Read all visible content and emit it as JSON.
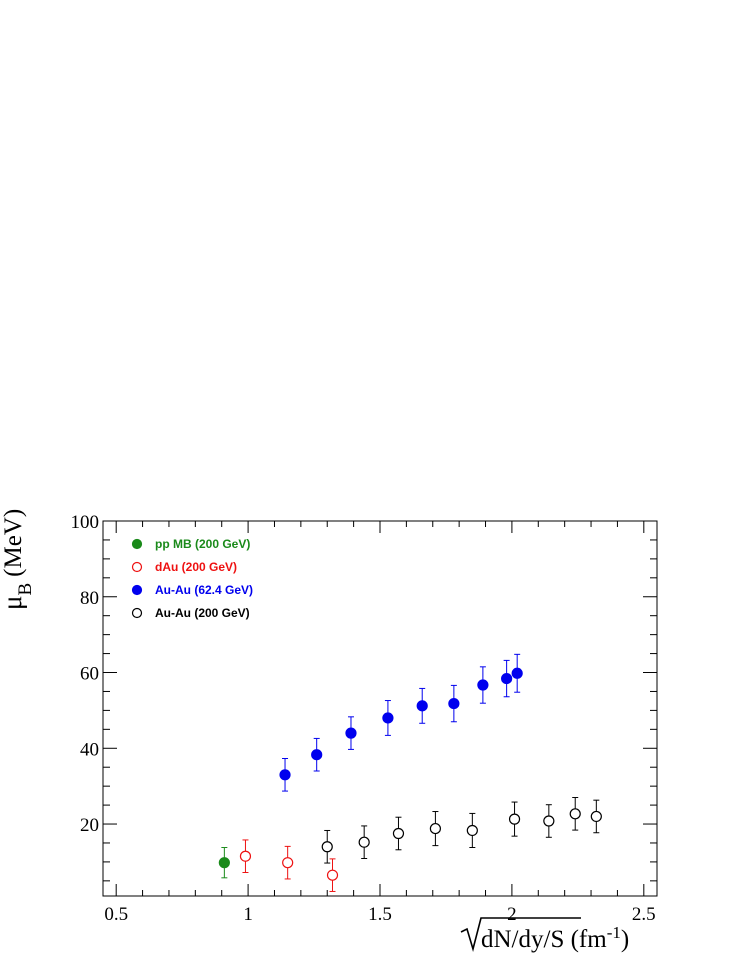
{
  "chart_data": {
    "type": "scatter",
    "xlabel": "dN/dy/S (fm",
    "xlabel_sup": "-1",
    "xlabel_close": ")",
    "ylabel": "μ",
    "ylabel_sub": "B",
    "ylabel_units": "(MeV)",
    "xlim": [
      0.45,
      2.55
    ],
    "ylim": [
      1,
      100
    ],
    "x_ticks": [
      {
        "value": 0.5,
        "label": "0.5"
      },
      {
        "value": 1.0,
        "label": "1"
      },
      {
        "value": 1.5,
        "label": "1.5"
      },
      {
        "value": 2.0,
        "label": "2"
      },
      {
        "value": 2.5,
        "label": "2.5"
      }
    ],
    "y_ticks": [
      {
        "value": 20,
        "label": "20"
      },
      {
        "value": 40,
        "label": "40"
      },
      {
        "value": 60,
        "label": "60"
      },
      {
        "value": 80,
        "label": "80"
      },
      {
        "value": 100,
        "label": "100"
      }
    ],
    "grid": false,
    "legend_position": "top-left",
    "series": [
      {
        "name": "pp MB (200 GeV)",
        "color": "#1a8a1a",
        "marker": "filled-circle",
        "points": [
          {
            "x": 0.91,
            "y": 9.8,
            "err": 4.0
          }
        ]
      },
      {
        "name": "dAu (200 GeV)",
        "color": "#ee1111",
        "marker": "open-circle",
        "points": [
          {
            "x": 0.99,
            "y": 11.5,
            "err": 4.3
          },
          {
            "x": 1.15,
            "y": 9.8,
            "err": 4.3
          },
          {
            "x": 1.32,
            "y": 6.5,
            "err": 4.3
          }
        ]
      },
      {
        "name": "Au-Au (62.4 GeV)",
        "color": "#0000ee",
        "marker": "filled-circle",
        "points": [
          {
            "x": 1.14,
            "y": 33.0,
            "err": 4.3
          },
          {
            "x": 1.26,
            "y": 38.3,
            "err": 4.3
          },
          {
            "x": 1.39,
            "y": 44.0,
            "err": 4.3
          },
          {
            "x": 1.53,
            "y": 48.0,
            "err": 4.6
          },
          {
            "x": 1.66,
            "y": 51.2,
            "err": 4.6
          },
          {
            "x": 1.78,
            "y": 51.8,
            "err": 4.8
          },
          {
            "x": 1.89,
            "y": 56.7,
            "err": 4.8
          },
          {
            "x": 1.98,
            "y": 58.4,
            "err": 4.8
          },
          {
            "x": 2.02,
            "y": 59.8,
            "err": 5.0
          }
        ]
      },
      {
        "name": "Au-Au (200 GeV)",
        "color": "#000000",
        "marker": "open-circle",
        "points": [
          {
            "x": 1.3,
            "y": 14.0,
            "err": 4.3
          },
          {
            "x": 1.44,
            "y": 15.2,
            "err": 4.3
          },
          {
            "x": 1.57,
            "y": 17.5,
            "err": 4.3
          },
          {
            "x": 1.71,
            "y": 18.8,
            "err": 4.5
          },
          {
            "x": 1.85,
            "y": 18.3,
            "err": 4.5
          },
          {
            "x": 2.01,
            "y": 21.3,
            "err": 4.5
          },
          {
            "x": 2.14,
            "y": 20.8,
            "err": 4.3
          },
          {
            "x": 2.24,
            "y": 22.7,
            "err": 4.3
          },
          {
            "x": 2.32,
            "y": 22.0,
            "err": 4.3
          }
        ]
      }
    ]
  }
}
